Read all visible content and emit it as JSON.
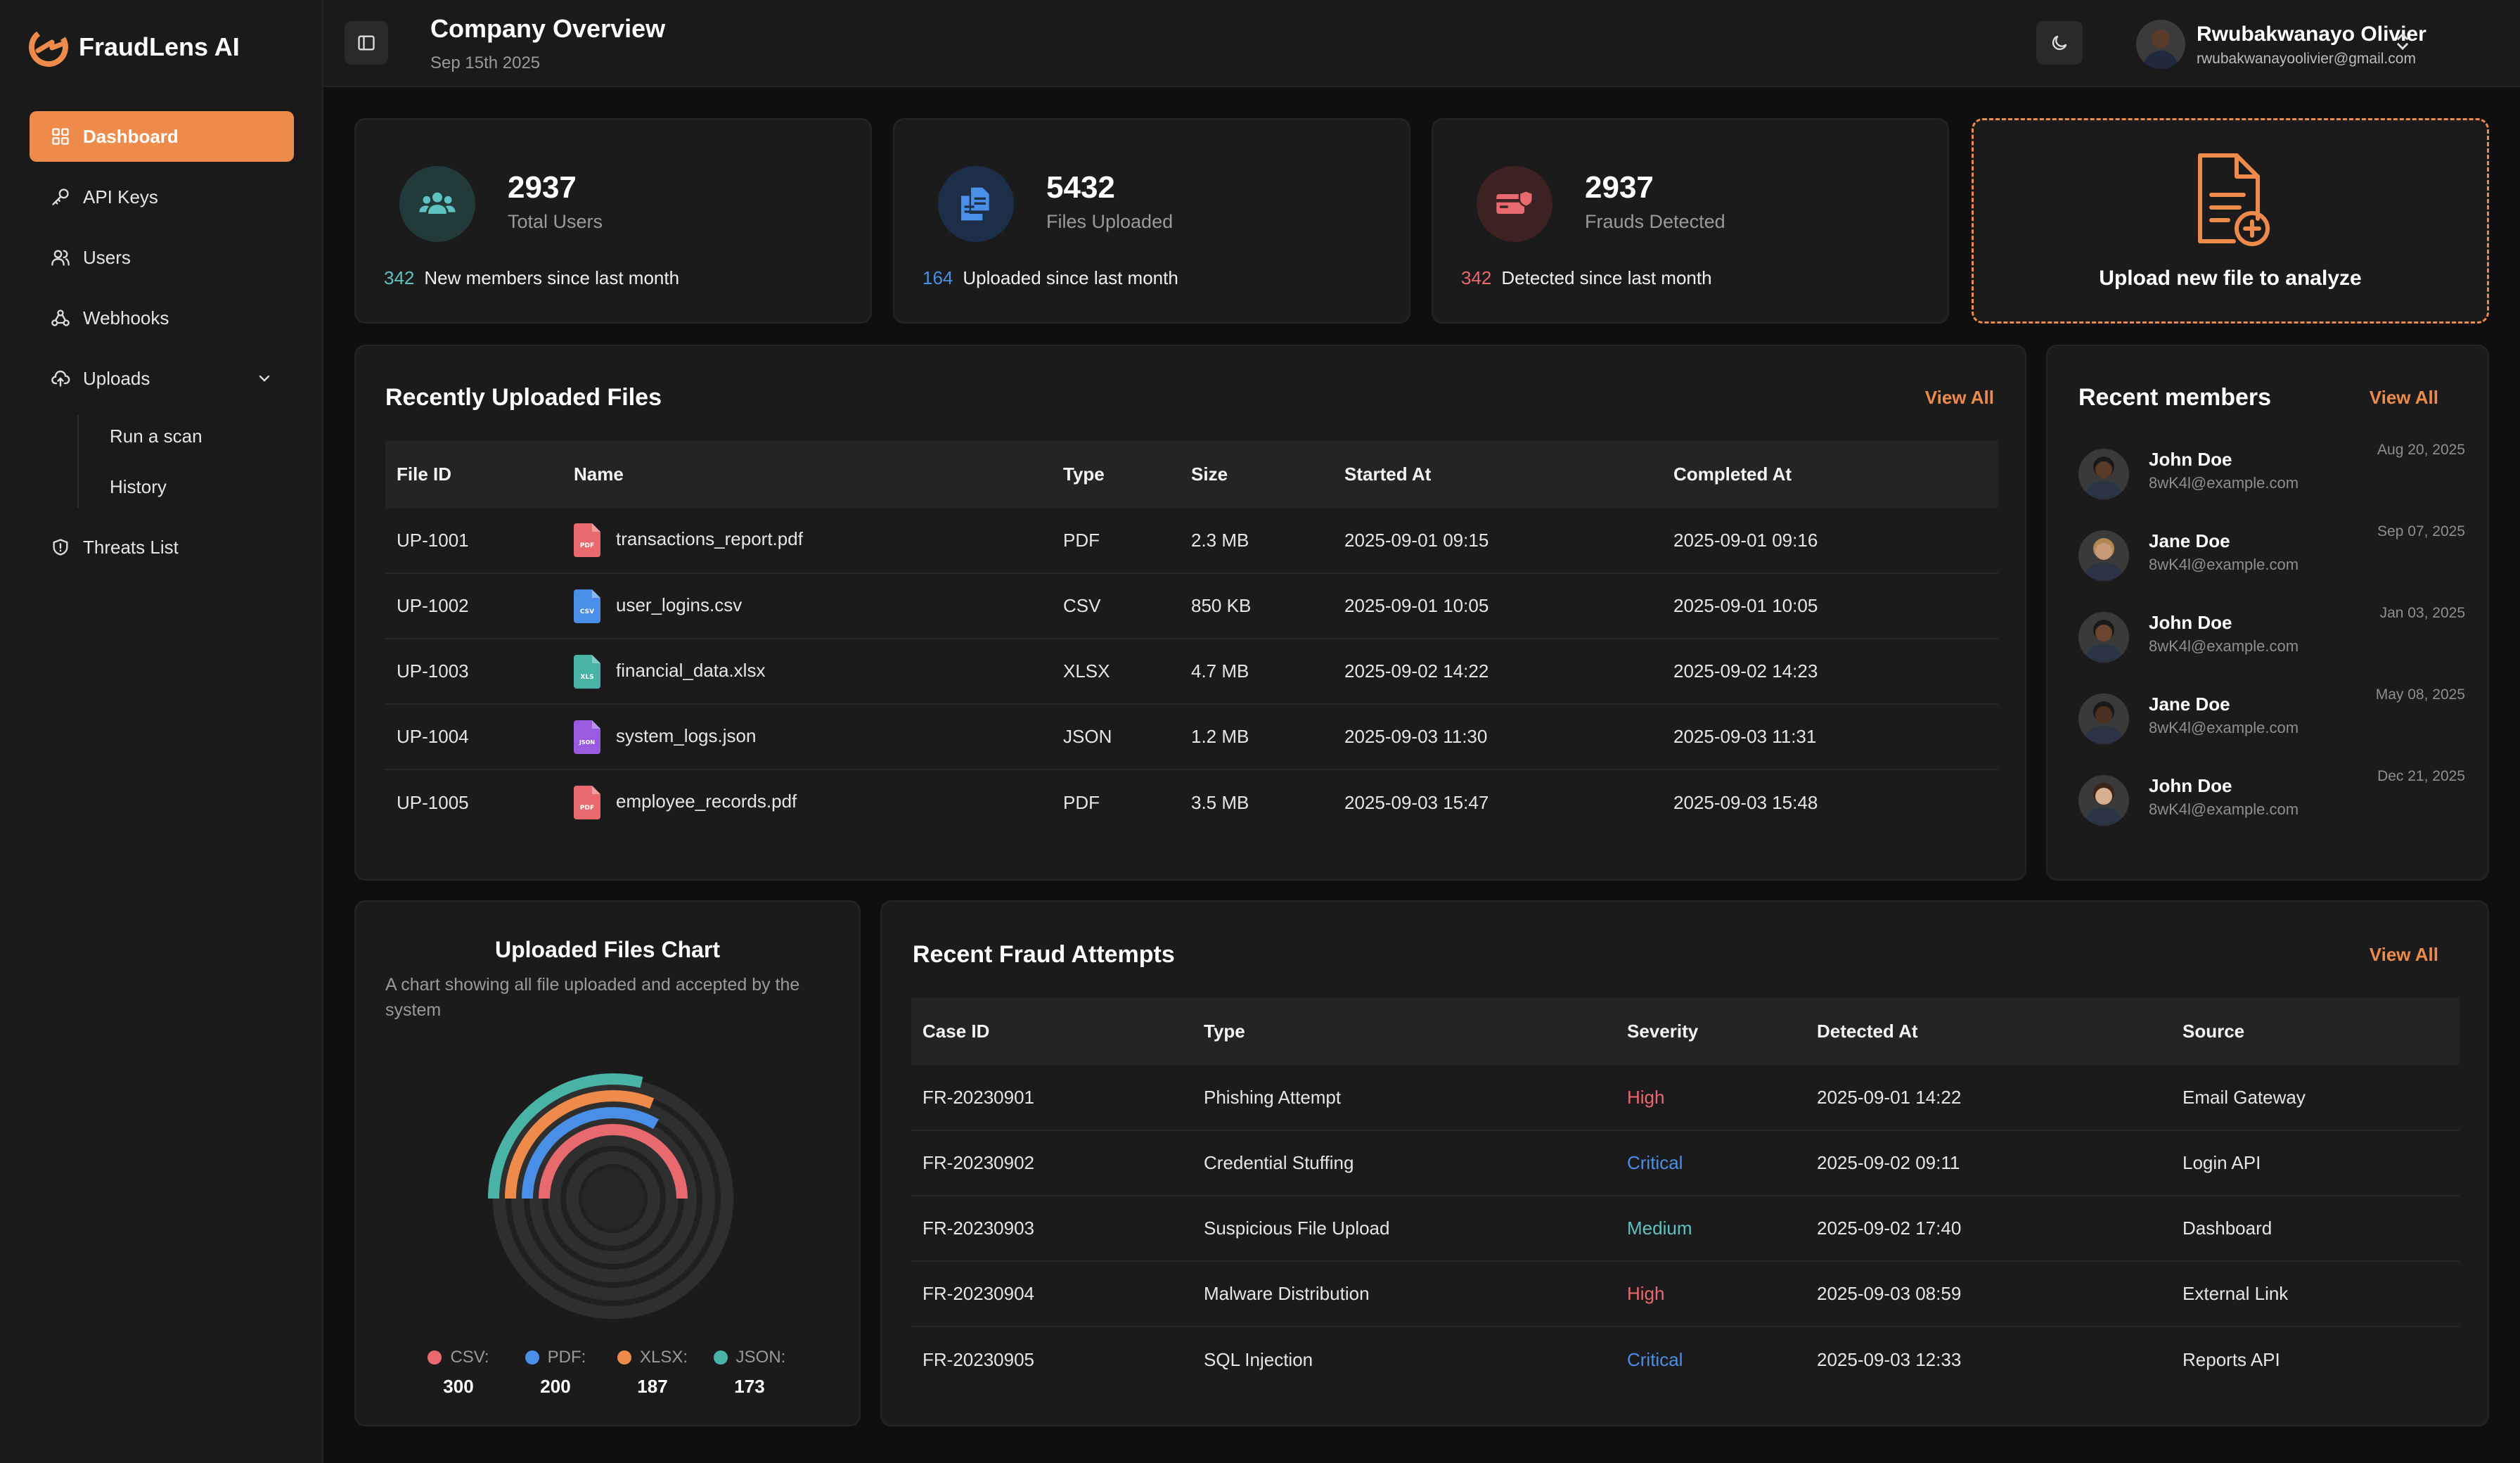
{
  "app": {
    "name": "FraudLens AI"
  },
  "sidebar": {
    "items": [
      {
        "label": "Dashboard"
      },
      {
        "label": "API Keys"
      },
      {
        "label": "Users"
      },
      {
        "label": "Webhooks"
      },
      {
        "label": "Uploads"
      }
    ],
    "sub_items": [
      {
        "label": "Run a scan"
      },
      {
        "label": "History"
      }
    ],
    "threats": {
      "label": "Threats List"
    }
  },
  "header": {
    "title": "Company Overview",
    "date": "Sep 15th 2025",
    "user_name": "Rwubakwanayo Olivier",
    "user_email": "rwubakwanayoolivier@gmail.com"
  },
  "stats": [
    {
      "value": "2937",
      "label": "Total Users",
      "delta": "342",
      "delta_text": "New members since last month",
      "color": "#5ec2c0"
    },
    {
      "value": "5432",
      "label": "Files Uploaded",
      "delta": "164",
      "delta_text": "Uploaded since last month",
      "color": "#4a8fe7"
    },
    {
      "value": "2937",
      "label": "Frauds Detected",
      "delta": "342",
      "delta_text": "Detected since last month",
      "color": "#e86a6e"
    }
  ],
  "upload": {
    "label": "Upload new file to analyze"
  },
  "files": {
    "title": "Recently Uploaded Files",
    "view_all": "View All",
    "columns": [
      "File ID",
      "Name",
      "Type",
      "Size",
      "Started At",
      "Completed At"
    ],
    "rows": [
      {
        "id": "UP-1001",
        "name": "transactions_report.pdf",
        "type": "PDF",
        "size": "2.3 MB",
        "started": "2025-09-01 09:15",
        "completed": "2025-09-01 09:16",
        "icon_color": "#e86a6e",
        "icon_tag": "PDF"
      },
      {
        "id": "UP-1002",
        "name": "user_logins.csv",
        "type": "CSV",
        "size": "850 KB",
        "started": "2025-09-01 10:05",
        "completed": "2025-09-01 10:05",
        "icon_color": "#4a8fe7",
        "icon_tag": "CSV"
      },
      {
        "id": "UP-1003",
        "name": "financial_data.xlsx",
        "type": "XLSX",
        "size": "4.7 MB",
        "started": "2025-09-02 14:22",
        "completed": "2025-09-02 14:23",
        "icon_color": "#49b3a6",
        "icon_tag": "XLS"
      },
      {
        "id": "UP-1004",
        "name": "system_logs.json",
        "type": "JSON",
        "size": "1.2 MB",
        "started": "2025-09-03 11:30",
        "completed": "2025-09-03 11:31",
        "icon_color": "#9a5be0",
        "icon_tag": "JSON"
      },
      {
        "id": "UP-1005",
        "name": "employee_records.pdf",
        "type": "PDF",
        "size": "3.5 MB",
        "started": "2025-09-03 15:47",
        "completed": "2025-09-03 15:48",
        "icon_color": "#e86a6e",
        "icon_tag": "PDF"
      }
    ]
  },
  "members": {
    "title": "Recent members",
    "view_all": "View All",
    "list": [
      {
        "name": "John Doe",
        "email": "8wK4l@example.com",
        "date": "Aug 20, 2025"
      },
      {
        "name": "Jane Doe",
        "email": "8wK4l@example.com",
        "date": "Sep 07, 2025"
      },
      {
        "name": "John Doe",
        "email": "8wK4l@example.com",
        "date": "Jan 03, 2025"
      },
      {
        "name": "Jane Doe",
        "email": "8wK4l@example.com",
        "date": "May 08, 2025"
      },
      {
        "name": "John Doe",
        "email": "8wK4l@example.com",
        "date": "Dec 21, 2025"
      }
    ]
  },
  "chart": {
    "title": "Uploaded Files Chart",
    "subtitle": "A chart showing all file uploaded and accepted by the system"
  },
  "chart_data": {
    "type": "radial-bar",
    "title": "Uploaded Files Chart",
    "categories": [
      "CSV",
      "PDF",
      "XLSX",
      "JSON"
    ],
    "values": [
      300,
      200,
      187,
      173
    ],
    "legend_labels": [
      "CSV:",
      "PDF:",
      "XLSX:",
      "JSON:"
    ],
    "colors": [
      "#e86a6e",
      "#4a8fe7",
      "#ee8a4a",
      "#49b3a6"
    ]
  },
  "fraud": {
    "title": "Recent Fraud Attempts",
    "view_all": "View All",
    "columns": [
      "Case ID",
      "Type",
      "Severity",
      "Detected At",
      "Source"
    ],
    "rows": [
      {
        "id": "FR-20230901",
        "type": "Phishing Attempt",
        "severity": "High",
        "detected": "2025-09-01 14:22",
        "source": "Email Gateway"
      },
      {
        "id": "FR-20230902",
        "type": "Credential Stuffing",
        "severity": "Critical",
        "detected": "2025-09-02 09:11",
        "source": "Login API"
      },
      {
        "id": "FR-20230903",
        "type": "Suspicious File Upload",
        "severity": "Medium",
        "detected": "2025-09-02 17:40",
        "source": "Dashboard"
      },
      {
        "id": "FR-20230904",
        "type": "Malware Distribution",
        "severity": "High",
        "detected": "2025-09-03 08:59",
        "source": "External Link"
      },
      {
        "id": "FR-20230905",
        "type": "SQL Injection",
        "severity": "Critical",
        "detected": "2025-09-03 12:33",
        "source": "Reports API"
      }
    ],
    "severity_colors": {
      "High": "#e86a6e",
      "Critical": "#4a8fe7",
      "Medium": "#5ec2c0"
    }
  },
  "colors": {
    "accent": "#ee8a4a",
    "background": "#0f0f0f",
    "card": "#1b1b1b"
  }
}
